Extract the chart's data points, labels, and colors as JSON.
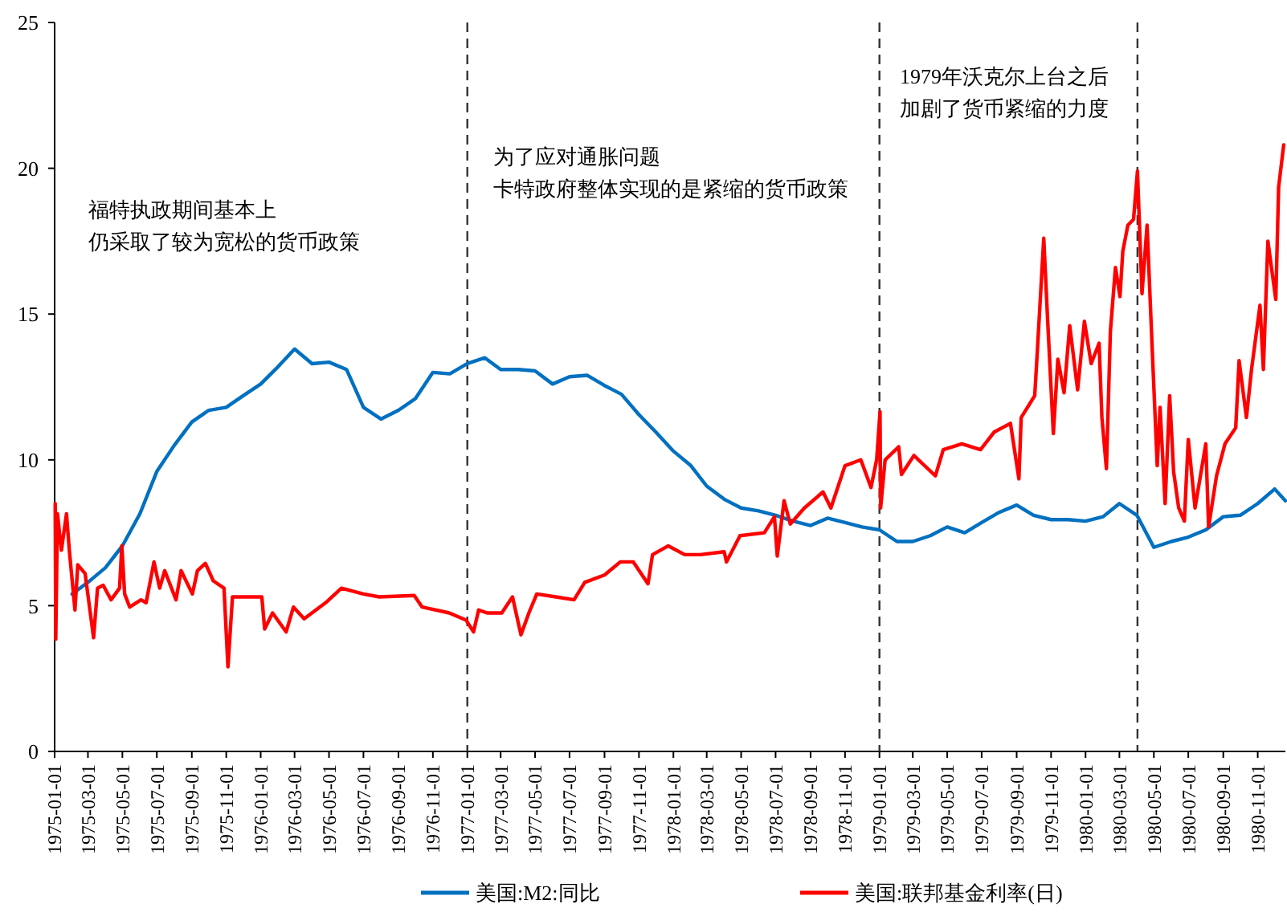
{
  "chart_data": {
    "type": "line",
    "xlim": [
      "1975-01-01",
      "1980-12-20"
    ],
    "ylim": [
      0,
      25
    ],
    "yticks": [
      0,
      5,
      10,
      15,
      20,
      25
    ],
    "xticks": [
      "1975-01-01",
      "1975-03-01",
      "1975-05-01",
      "1975-07-01",
      "1975-09-01",
      "1975-11-01",
      "1976-01-01",
      "1976-03-01",
      "1976-05-01",
      "1976-07-01",
      "1976-09-01",
      "1976-11-01",
      "1977-01-01",
      "1977-03-01",
      "1977-05-01",
      "1977-07-01",
      "1977-09-01",
      "1977-11-01",
      "1978-01-01",
      "1978-03-01",
      "1978-05-01",
      "1978-07-01",
      "1978-09-01",
      "1978-11-01",
      "1979-01-01",
      "1979-03-01",
      "1979-05-01",
      "1979-07-01",
      "1979-09-01",
      "1979-11-01",
      "1980-01-01",
      "1980-03-01",
      "1980-05-01",
      "1980-07-01",
      "1980-09-01",
      "1980-11-01"
    ],
    "grid": false,
    "legend": "bottom",
    "line_style": "solid",
    "marker": "none",
    "annotations": [
      "福特执政期间基本上",
      "仍采取了较为宽松的货币政策",
      "为了应对通胀问题",
      "卡特政府整体实现的是紧缩的货币政策",
      "1979年沃克尔上台之后",
      "加剧了货币紧缩的力度"
    ],
    "ref_lines": [
      {
        "axis": "x",
        "value": "1977-01-01",
        "color": "#333333",
        "line_style": "dashed"
      },
      {
        "axis": "x",
        "value": "1979-01-01",
        "color": "#333333",
        "line_style": "dashed"
      },
      {
        "axis": "x",
        "value": "1980-04-02",
        "color": "#333333",
        "line_style": "dashed"
      }
    ],
    "series": [
      {
        "name": "美国:M2:同比",
        "color": "#0070c0",
        "x": [
          "1975-02-01",
          "1975-03-01",
          "1975-04-01",
          "1975-05-01",
          "1975-06-01",
          "1975-07-01",
          "1975-08-01",
          "1975-09-01",
          "1975-10-01",
          "1975-11-01",
          "1975-12-01",
          "1976-01-01",
          "1976-02-01",
          "1976-03-01",
          "1976-04-01",
          "1976-05-01",
          "1976-06-01",
          "1976-07-01",
          "1976-08-01",
          "1976-09-01",
          "1976-10-01",
          "1976-11-01",
          "1976-12-01",
          "1977-01-01",
          "1977-02-01",
          "1977-03-01",
          "1977-04-01",
          "1977-05-01",
          "1977-06-01",
          "1977-07-01",
          "1977-08-01",
          "1977-09-01",
          "1977-10-01",
          "1977-11-01",
          "1977-12-01",
          "1978-01-01",
          "1978-02-01",
          "1978-03-01",
          "1978-04-01",
          "1978-05-01",
          "1978-06-01",
          "1978-07-01",
          "1978-08-01",
          "1978-09-01",
          "1978-10-01",
          "1978-11-01",
          "1978-12-01",
          "1979-01-01",
          "1979-02-01",
          "1979-03-01",
          "1979-04-01",
          "1979-05-01",
          "1979-06-01",
          "1979-07-01",
          "1979-08-01",
          "1979-09-01",
          "1979-10-01",
          "1979-11-01",
          "1979-12-01",
          "1980-01-01",
          "1980-02-01",
          "1980-03-01",
          "1980-04-01",
          "1980-05-01",
          "1980-06-01",
          "1980-07-01",
          "1980-08-01",
          "1980-09-01",
          "1980-10-01",
          "1980-11-01",
          "1980-12-01",
          "1980-12-20"
        ],
        "values": [
          5.4,
          5.8,
          6.3,
          7.05,
          8.15,
          9.6,
          10.5,
          11.3,
          11.7,
          11.8,
          12.2,
          12.6,
          13.2,
          13.8,
          13.3,
          13.35,
          13.1,
          11.8,
          11.4,
          11.7,
          12.1,
          13.0,
          12.95,
          13.3,
          13.5,
          13.1,
          13.1,
          13.05,
          12.6,
          12.85,
          12.9,
          12.55,
          12.25,
          11.55,
          10.95,
          10.3,
          9.8,
          9.1,
          8.65,
          8.35,
          8.25,
          8.1,
          7.9,
          7.75,
          8.0,
          7.85,
          7.7,
          7.6,
          7.2,
          7.2,
          7.4,
          7.7,
          7.5,
          7.85,
          8.2,
          8.45,
          8.1,
          7.95,
          7.95,
          7.9,
          8.05,
          8.5,
          8.1,
          7.0,
          7.2,
          7.35,
          7.6,
          8.05,
          8.1,
          8.5,
          9.0,
          8.6
        ]
      },
      {
        "name": "美国:联邦基金利率(日)",
        "color": "#ff0000",
        "x": [
          "1975-01-02",
          "1975-01-03",
          "1975-01-06",
          "1975-01-13",
          "1975-01-22",
          "1975-01-27",
          "1975-02-06",
          "1975-02-11",
          "1975-02-24",
          "1975-03-11",
          "1975-03-18",
          "1975-03-28",
          "1975-04-11",
          "1975-04-26",
          "1975-04-30",
          "1975-05-05",
          "1975-05-14",
          "1975-06-03",
          "1975-06-12",
          "1975-06-26",
          "1975-07-06",
          "1975-07-15",
          "1975-08-04",
          "1975-08-13",
          "1975-09-02",
          "1975-09-11",
          "1975-09-25",
          "1975-10-09",
          "1975-10-28",
          "1975-11-04",
          "1975-11-12",
          "1976-01-03",
          "1976-01-08",
          "1976-01-22",
          "1976-02-15",
          "1976-02-28",
          "1976-03-18",
          "1976-04-25",
          "1976-05-23",
          "1976-07-01",
          "1976-07-29",
          "1976-09-29",
          "1976-10-13",
          "1976-11-30",
          "1976-12-30",
          "1977-01-12",
          "1977-01-21",
          "1977-02-05",
          "1977-03-03",
          "1977-03-22",
          "1977-04-06",
          "1977-04-20",
          "1977-05-04",
          "1977-06-07",
          "1977-07-09",
          "1977-07-28",
          "1977-09-01",
          "1977-09-29",
          "1977-10-22",
          "1977-11-17",
          "1977-11-25",
          "1977-12-23",
          "1978-01-21",
          "1978-02-18",
          "1978-04-01",
          "1978-04-05",
          "1978-04-29",
          "1978-06-11",
          "1978-06-29",
          "1978-07-04",
          "1978-07-16",
          "1978-07-27",
          "1978-08-21",
          "1978-09-23",
          "1978-10-07",
          "1978-11-01",
          "1978-11-29",
          "1978-12-17",
          "1978-12-27",
          "1979-01-02",
          "1979-01-03",
          "1979-01-11",
          "1979-02-04",
          "1979-02-09",
          "1979-03-03",
          "1979-04-10",
          "1979-04-24",
          "1979-05-27",
          "1979-06-29",
          "1979-07-23",
          "1979-08-21",
          "1979-09-05",
          "1979-09-09",
          "1979-10-03",
          "1979-10-08",
          "1979-10-19",
          "1979-10-26",
          "1979-11-05",
          "1979-11-13",
          "1979-11-24",
          "1979-12-04",
          "1979-12-18",
          "1979-12-30",
          "1980-01-11",
          "1980-01-25",
          "1980-01-30",
          "1980-02-07",
          "1980-02-14",
          "1980-02-23",
          "1980-03-02",
          "1980-03-07",
          "1980-03-16",
          "1980-03-26",
          "1980-04-02",
          "1980-04-10",
          "1980-04-19",
          "1980-04-28",
          "1980-05-07",
          "1980-05-12",
          "1980-05-21",
          "1980-05-29",
          "1980-06-05",
          "1980-06-14",
          "1980-06-24",
          "1980-07-01",
          "1980-07-13",
          "1980-08-01",
          "1980-08-06",
          "1980-08-20",
          "1980-09-04",
          "1980-09-23",
          "1980-09-29",
          "1980-10-12",
          "1980-10-21",
          "1980-11-05",
          "1980-11-11",
          "1980-11-19",
          "1980-12-03",
          "1980-12-08",
          "1980-12-17"
        ],
        "values": [
          8.5,
          3.85,
          8.15,
          6.9,
          8.15,
          6.9,
          4.85,
          6.4,
          6.1,
          3.9,
          5.6,
          5.7,
          5.2,
          5.6,
          7.05,
          5.4,
          4.95,
          5.2,
          5.1,
          6.5,
          5.6,
          6.2,
          5.2,
          6.2,
          5.4,
          6.2,
          6.45,
          5.85,
          5.6,
          2.9,
          5.3,
          5.3,
          4.2,
          4.75,
          4.1,
          4.95,
          4.55,
          5.1,
          5.6,
          5.4,
          5.3,
          5.35,
          4.95,
          4.75,
          4.5,
          4.1,
          4.85,
          4.75,
          4.75,
          5.3,
          4.0,
          4.75,
          5.4,
          5.3,
          5.2,
          5.8,
          6.05,
          6.5,
          6.5,
          5.75,
          6.75,
          7.05,
          6.75,
          6.75,
          6.85,
          6.5,
          7.4,
          7.5,
          8.05,
          6.7,
          8.6,
          7.8,
          8.35,
          8.9,
          8.35,
          9.8,
          10.0,
          9.05,
          10.0,
          11.65,
          8.35,
          10.0,
          10.45,
          9.5,
          10.15,
          9.45,
          10.35,
          10.55,
          10.35,
          10.95,
          11.25,
          9.35,
          11.45,
          12.2,
          13.85,
          17.6,
          14.75,
          10.9,
          13.45,
          12.3,
          14.6,
          12.4,
          14.75,
          13.3,
          14.0,
          11.45,
          9.7,
          14.4,
          16.6,
          15.6,
          17.15,
          18.05,
          18.25,
          19.9,
          15.7,
          18.05,
          13.85,
          9.8,
          11.8,
          8.5,
          12.2,
          9.6,
          8.35,
          7.9,
          10.7,
          8.35,
          10.55,
          7.7,
          9.45,
          10.55,
          11.1,
          13.4,
          11.45,
          13.1,
          15.3,
          13.1,
          17.5,
          15.5,
          19.35,
          20.8
        ]
      }
    ]
  }
}
